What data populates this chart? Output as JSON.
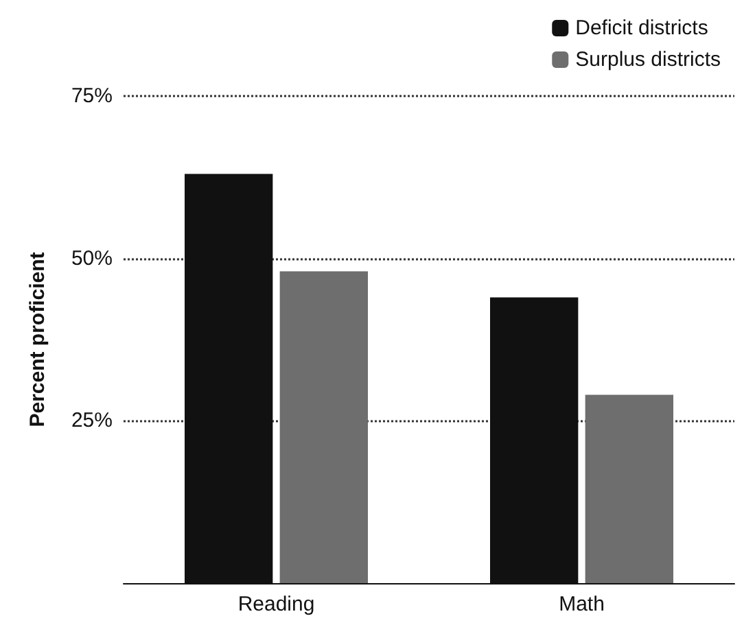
{
  "chart_data": {
    "type": "bar",
    "ylabel": "Percent proficient",
    "categories": [
      "Reading",
      "Math"
    ],
    "series": [
      {
        "name": "Deficit districts",
        "color": "#111111",
        "values": [
          63,
          44
        ]
      },
      {
        "name": "Surplus districts",
        "color": "#6e6e6e",
        "values": [
          48,
          29
        ]
      }
    ],
    "ylim": [
      0,
      75
    ],
    "yticks": [
      {
        "value": 25,
        "label": "25%"
      },
      {
        "value": 50,
        "label": "50%"
      },
      {
        "value": 75,
        "label": "75%"
      }
    ],
    "grid": "y",
    "legend": "top right"
  }
}
